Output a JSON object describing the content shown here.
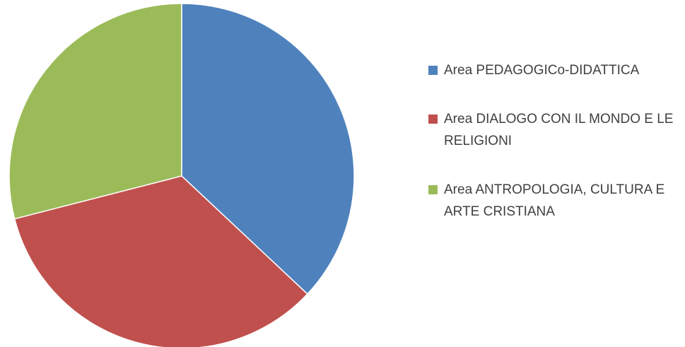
{
  "chart_data": {
    "type": "pie",
    "title": "",
    "legend_position": "right",
    "slices": [
      {
        "label": "Area PEDAGOGICo-DIDATTICA",
        "value": 37,
        "color": "#4F81BD"
      },
      {
        "label": "Area DIALOGO CON IL MONDO E LE RELIGIONI",
        "value": 34,
        "color": "#C0504D"
      },
      {
        "label": "Area ANTROPOLOGIA, CULTURA E ARTE CRISTIANA",
        "value": 29,
        "color": "#9BBB59"
      }
    ]
  }
}
